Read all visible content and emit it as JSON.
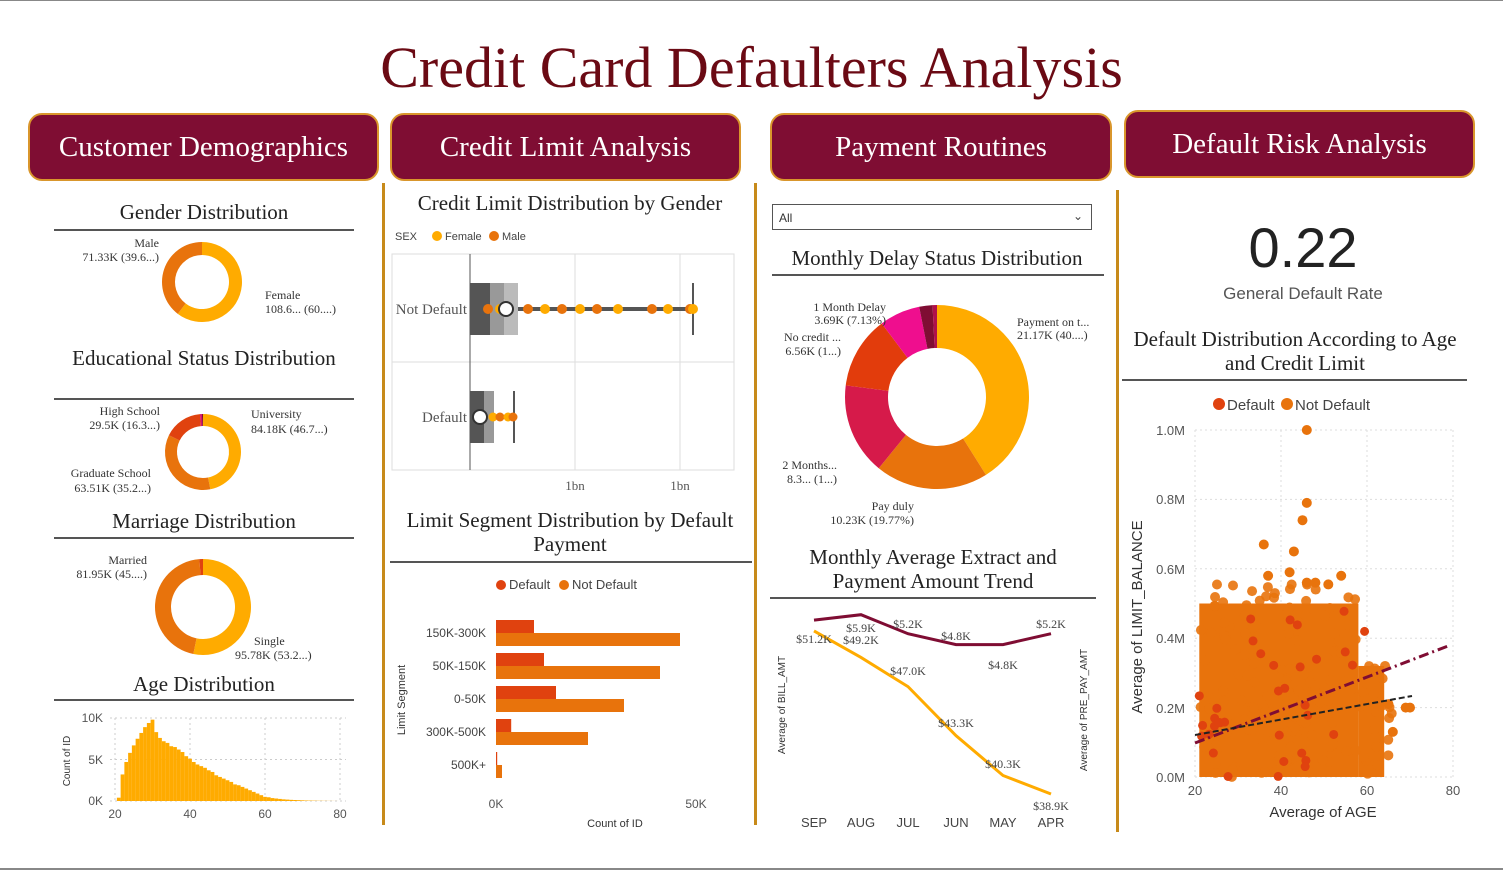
{
  "title": "Credit Card Defaulters Analysis",
  "headers": [
    "Customer Demographics",
    "Credit Limit Analysis",
    "Payment Routines",
    "Default Risk Analysis"
  ],
  "colors": {
    "primary": "#7f0d33",
    "gold": "#d9962c",
    "female": "#ffab00",
    "male": "#e8730c",
    "default": "#e0420f",
    "not_default": "#e8730c"
  },
  "demographics": {
    "gender": {
      "title": "Gender Distribution",
      "slices": [
        {
          "label": "Female",
          "value_text": "108.6... (60....)",
          "value": 108.6,
          "color": "#ffab00"
        },
        {
          "label": "Male",
          "value_text": "71.33K (39.6...)",
          "value": 71.33,
          "color": "#e8730c"
        }
      ]
    },
    "education": {
      "title": "Educational Status Distribution",
      "slices": [
        {
          "label": "University",
          "value_text": "84.18K (46.7...)",
          "value": 84.18,
          "color": "#ffab00"
        },
        {
          "label": "Graduate School",
          "value_text": "63.51K (35.2...)",
          "value": 63.51,
          "color": "#e8730c"
        },
        {
          "label": "High School",
          "value_text": "29.5K (16.3...)",
          "value": 29.5,
          "color": "#e0420f"
        },
        {
          "label": "",
          "value_text": "",
          "value": 1.5,
          "color": "#d6136b"
        },
        {
          "label": "",
          "value_text": "",
          "value": 0.8,
          "color": "#7f0d33"
        }
      ]
    },
    "marriage": {
      "title": "Marriage Distribution",
      "slices": [
        {
          "label": "Single",
          "value_text": "95.78K (53.2...)",
          "value": 95.78,
          "color": "#ffab00"
        },
        {
          "label": "Married",
          "value_text": "81.95K (45....)",
          "value": 81.95,
          "color": "#e8730c"
        },
        {
          "label": "",
          "value_text": "",
          "value": 2.2,
          "color": "#e0420f"
        }
      ]
    },
    "age": {
      "title": "Age Distribution",
      "ylabel": "Count of ID",
      "yticks": [
        "10K",
        "5K",
        "0K"
      ],
      "xticks": [
        "20",
        "40",
        "60",
        "80"
      ]
    }
  },
  "credit": {
    "box_title": "Credit Limit Distribution by Gender",
    "legend_title": "SEX",
    "legend": [
      "Female",
      "Male"
    ],
    "categories": [
      "Not Default",
      "Default"
    ],
    "xticks": [
      "1bn",
      "1bn"
    ],
    "seg_title": "Limit Segment Distribution by Default Payment",
    "seg_legend": [
      "Default",
      "Not Default"
    ],
    "seg_ylabel": "Limit Segment",
    "seg_xlabel": "Count of ID",
    "seg_xticks": [
      "0K",
      "50K"
    ]
  },
  "payment": {
    "filter_value": "All",
    "delay_title": "Monthly Delay Status Distribution",
    "delay_slices": [
      {
        "label": "Payment on t...",
        "value_text": "21.17K (40....)",
        "value": 21.17,
        "color": "#ffab00"
      },
      {
        "label": "Pay duly",
        "value_text": "10.23K (19.77%)",
        "value": 10.23,
        "color": "#e8730c"
      },
      {
        "label": "2 Months...",
        "value_text": "8.3... (1...)",
        "value": 8.3,
        "color": "#d61a4a"
      },
      {
        "label": "No credit ...",
        "value_text": "6.56K (1...)",
        "value": 6.56,
        "color": "#e23c0c"
      },
      {
        "label": "1 Month Delay",
        "value_text": "3.69K (7.13%)",
        "value": 3.69,
        "color": "#ef0e8e"
      },
      {
        "label": "",
        "value_text": "",
        "value": 1.2,
        "color": "#7f0d33"
      },
      {
        "label": "",
        "value_text": "",
        "value": 0.4,
        "color": "#b0104a"
      }
    ],
    "trend_title": "Monthly Average Extract and Payment Amount Trend",
    "left_axis": "Average of BILL_AMT",
    "right_axis": "Average of PRE_PAY_AMT",
    "months": [
      "SEP",
      "AUG",
      "JUL",
      "JUN",
      "MAY",
      "APR"
    ],
    "bill_labels": [
      "$51.2K",
      "$49.2K",
      "$47.0K",
      "$43.3K",
      "$40.3K",
      "$38.9K"
    ],
    "pay_labels": [
      "$5.9K",
      "$5.2K",
      "$4.8K",
      "$4.8K",
      "$5.2K"
    ]
  },
  "risk": {
    "kpi_value": "0.22",
    "kpi_label": "General Default Rate",
    "scatter_title": "Default Distribution According to Age and Credit Limit",
    "legend": [
      "Default",
      "Not Default"
    ],
    "xlabel": "Average of AGE",
    "ylabel": "Average of LIMIT_BALANCE",
    "yticks": [
      "1.0M",
      "0.8M",
      "0.6M",
      "0.4M",
      "0.2M",
      "0.0M"
    ],
    "xticks": [
      "20",
      "40",
      "60",
      "80"
    ]
  },
  "chart_data": [
    {
      "type": "pie",
      "title": "Gender Distribution",
      "categories": [
        "Female",
        "Male"
      ],
      "values": [
        108.6,
        71.33
      ],
      "unit": "K"
    },
    {
      "type": "pie",
      "title": "Educational Status Distribution",
      "categories": [
        "University",
        "Graduate School",
        "High School"
      ],
      "values": [
        84.18,
        63.51,
        29.5
      ],
      "unit": "K"
    },
    {
      "type": "pie",
      "title": "Marriage Distribution",
      "categories": [
        "Single",
        "Married"
      ],
      "values": [
        95.78,
        81.95
      ],
      "unit": "K"
    },
    {
      "type": "bar",
      "title": "Age Distribution",
      "xlabel": "",
      "ylabel": "Count of ID",
      "x": [
        21,
        22,
        23,
        24,
        25,
        26,
        27,
        28,
        29,
        30,
        31,
        32,
        33,
        34,
        35,
        36,
        37,
        38,
        39,
        40,
        41,
        42,
        43,
        44,
        45,
        46,
        47,
        48,
        49,
        50,
        51,
        52,
        53,
        54,
        55,
        56,
        57,
        58,
        59,
        60,
        61,
        62,
        63,
        64,
        65,
        66,
        67,
        68,
        69,
        70,
        71,
        72,
        73,
        74,
        75,
        76,
        77,
        78,
        79
      ],
      "values": [
        400,
        3200,
        4700,
        5800,
        6700,
        7500,
        8200,
        8900,
        9400,
        9800,
        8300,
        7600,
        7200,
        7000,
        6600,
        6500,
        6200,
        5900,
        5400,
        5100,
        4700,
        4400,
        4200,
        4000,
        3700,
        3500,
        3100,
        2900,
        2700,
        2500,
        2300,
        2000,
        1900,
        1700,
        1500,
        1300,
        1100,
        900,
        700,
        500,
        450,
        350,
        300,
        250,
        200,
        170,
        140,
        120,
        100,
        80,
        60,
        50,
        40,
        30,
        25,
        20,
        15,
        10,
        5
      ],
      "ylim": [
        0,
        10000
      ],
      "xlim": [
        20,
        80
      ]
    },
    {
      "type": "box",
      "title": "Credit Limit Distribution by Gender",
      "categories": [
        "Not Default",
        "Default"
      ],
      "series": [
        "Female",
        "Male"
      ]
    },
    {
      "type": "bar",
      "title": "Limit Segment Distribution by Default Payment",
      "categories": [
        "150K-300K",
        "50K-150K",
        "0-50K",
        "300K-500K",
        "500K+"
      ],
      "series": [
        {
          "name": "Default",
          "values": [
            9500,
            12000,
            15000,
            3800,
            300
          ]
        },
        {
          "name": "Not Default",
          "values": [
            46000,
            41000,
            32000,
            23000,
            1500
          ]
        }
      ],
      "xlabel": "Count of ID",
      "ylabel": "Limit Segment",
      "xlim": [
        0,
        60000
      ]
    },
    {
      "type": "pie",
      "title": "Monthly Delay Status Distribution",
      "categories": [
        "Payment on t...",
        "Pay duly",
        "2 Months...",
        "No credit ...",
        "1 Month Delay"
      ],
      "values": [
        21.17,
        10.23,
        8.3,
        6.56,
        3.69
      ],
      "unit": "K"
    },
    {
      "type": "line",
      "title": "Monthly Average Extract and Payment Amount Trend",
      "categories": [
        "SEP",
        "AUG",
        "JUL",
        "JUN",
        "MAY",
        "APR"
      ],
      "series": [
        {
          "name": "Average of BILL_AMT",
          "values": [
            51.2,
            49.2,
            47.0,
            43.3,
            40.3,
            38.9
          ]
        },
        {
          "name": "Average of PRE_PAY_AMT",
          "values": [
            5.7,
            5.9,
            5.2,
            4.8,
            4.8,
            5.2
          ]
        }
      ],
      "unit": "$K"
    },
    {
      "type": "scatter",
      "title": "Default Distribution According to Age and Credit Limit",
      "xlabel": "Average of AGE",
      "ylabel": "Average of LIMIT_BALANCE",
      "series": [
        {
          "name": "Default"
        },
        {
          "name": "Not Default"
        }
      ],
      "xlim": [
        20,
        80
      ],
      "ylim": [
        0,
        1000000
      ]
    }
  ]
}
